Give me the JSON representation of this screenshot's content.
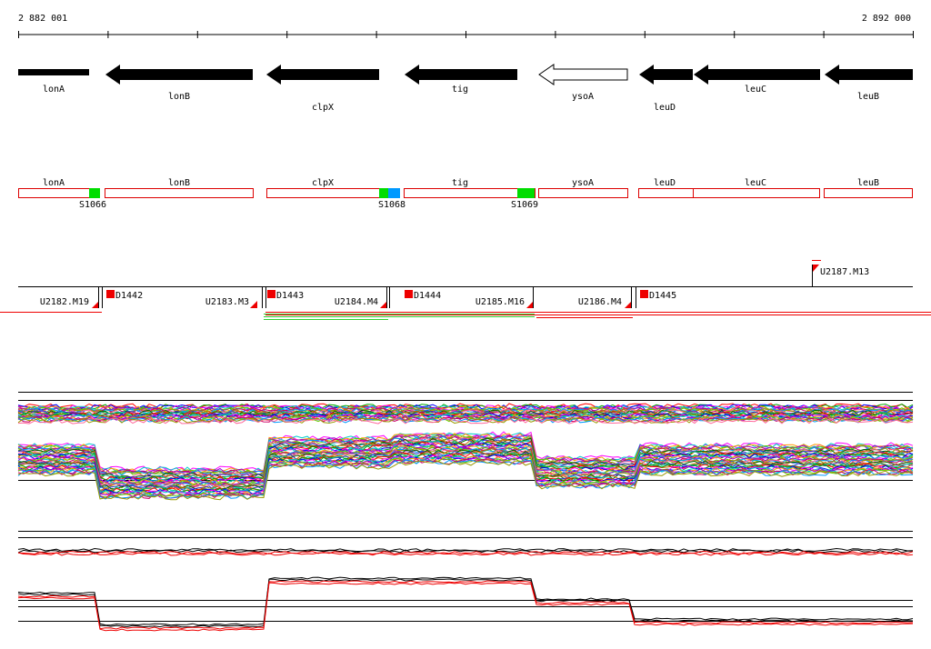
{
  "coordinates": {
    "start_label": "2 882 001",
    "end_label": "2 892 000"
  },
  "colors": {
    "gene_fill": "#000000",
    "gene_open": "#ffffff",
    "box_outline": "#dd0000",
    "marker_red": "#ee0000",
    "green": "#00dd00",
    "blue": "#0099ff"
  },
  "genes": [
    {
      "name": "lonA",
      "direction": "right",
      "filled": true
    },
    {
      "name": "lonB",
      "direction": "left",
      "filled": true
    },
    {
      "name": "clpX",
      "direction": "left",
      "filled": true
    },
    {
      "name": "tig",
      "direction": "left",
      "filled": true
    },
    {
      "name": "ysoA",
      "direction": "left",
      "filled": false
    },
    {
      "name": "leuD",
      "direction": "left",
      "filled": true
    },
    {
      "name": "leuC",
      "direction": "left",
      "filled": true
    },
    {
      "name": "leuB",
      "direction": "left",
      "filled": true
    }
  ],
  "gene_boxes": [
    "lonA",
    "lonB",
    "clpX",
    "tig",
    "ysoA",
    "leuD",
    "leuC",
    "leuB"
  ],
  "segments": [
    {
      "label": "S1066",
      "color": "green"
    },
    {
      "label": "S1068",
      "color": "green+blue"
    },
    {
      "label": "S1069",
      "color": "green"
    }
  ],
  "upstream_labels": [
    "U2182.M19",
    "U2183.M3",
    "U2184.M4",
    "U2185.M16",
    "U2186.M4",
    "U2187.M13"
  ],
  "downstream_labels": [
    "D1442",
    "D1443",
    "D1444",
    "D1445"
  ]
}
